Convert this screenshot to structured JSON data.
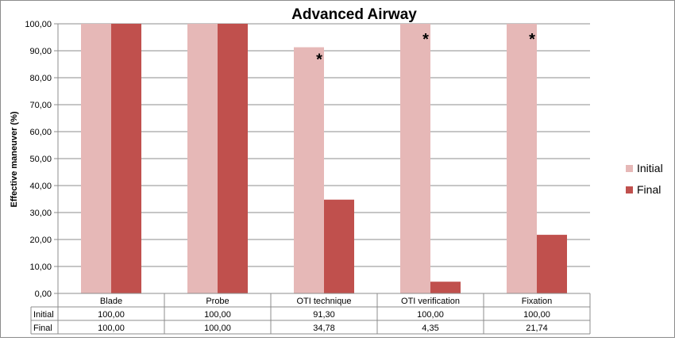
{
  "chart_data": {
    "type": "bar",
    "title": "Advanced Airway",
    "ylabel": "Effective maneuver  (%)",
    "xlabel": "",
    "ylim": [
      0,
      100
    ],
    "y_ticks": [
      "0,00",
      "10,00",
      "20,00",
      "30,00",
      "40,00",
      "50,00",
      "60,00",
      "70,00",
      "80,00",
      "90,00",
      "100,00"
    ],
    "categories": [
      "Blade",
      "Probe",
      "OTI technique",
      "OTI verification",
      "Fixation"
    ],
    "series": [
      {
        "name": "Initial",
        "color": "#e6b8b7",
        "values": [
          100,
          100,
          91.3,
          100,
          100
        ],
        "labels": [
          "100,00",
          "100,00",
          "91,30",
          "100,00",
          "100,00"
        ]
      },
      {
        "name": "Final",
        "color": "#c0504d",
        "values": [
          100,
          100,
          34.78,
          4.35,
          21.74
        ],
        "labels": [
          "100,00",
          "100,00",
          "34,78",
          "4,35",
          "21,74"
        ]
      }
    ],
    "significance_marker": "*",
    "significant_categories": [
      2,
      3,
      4
    ],
    "grid": true,
    "legend_position": "right",
    "data_table": true
  }
}
